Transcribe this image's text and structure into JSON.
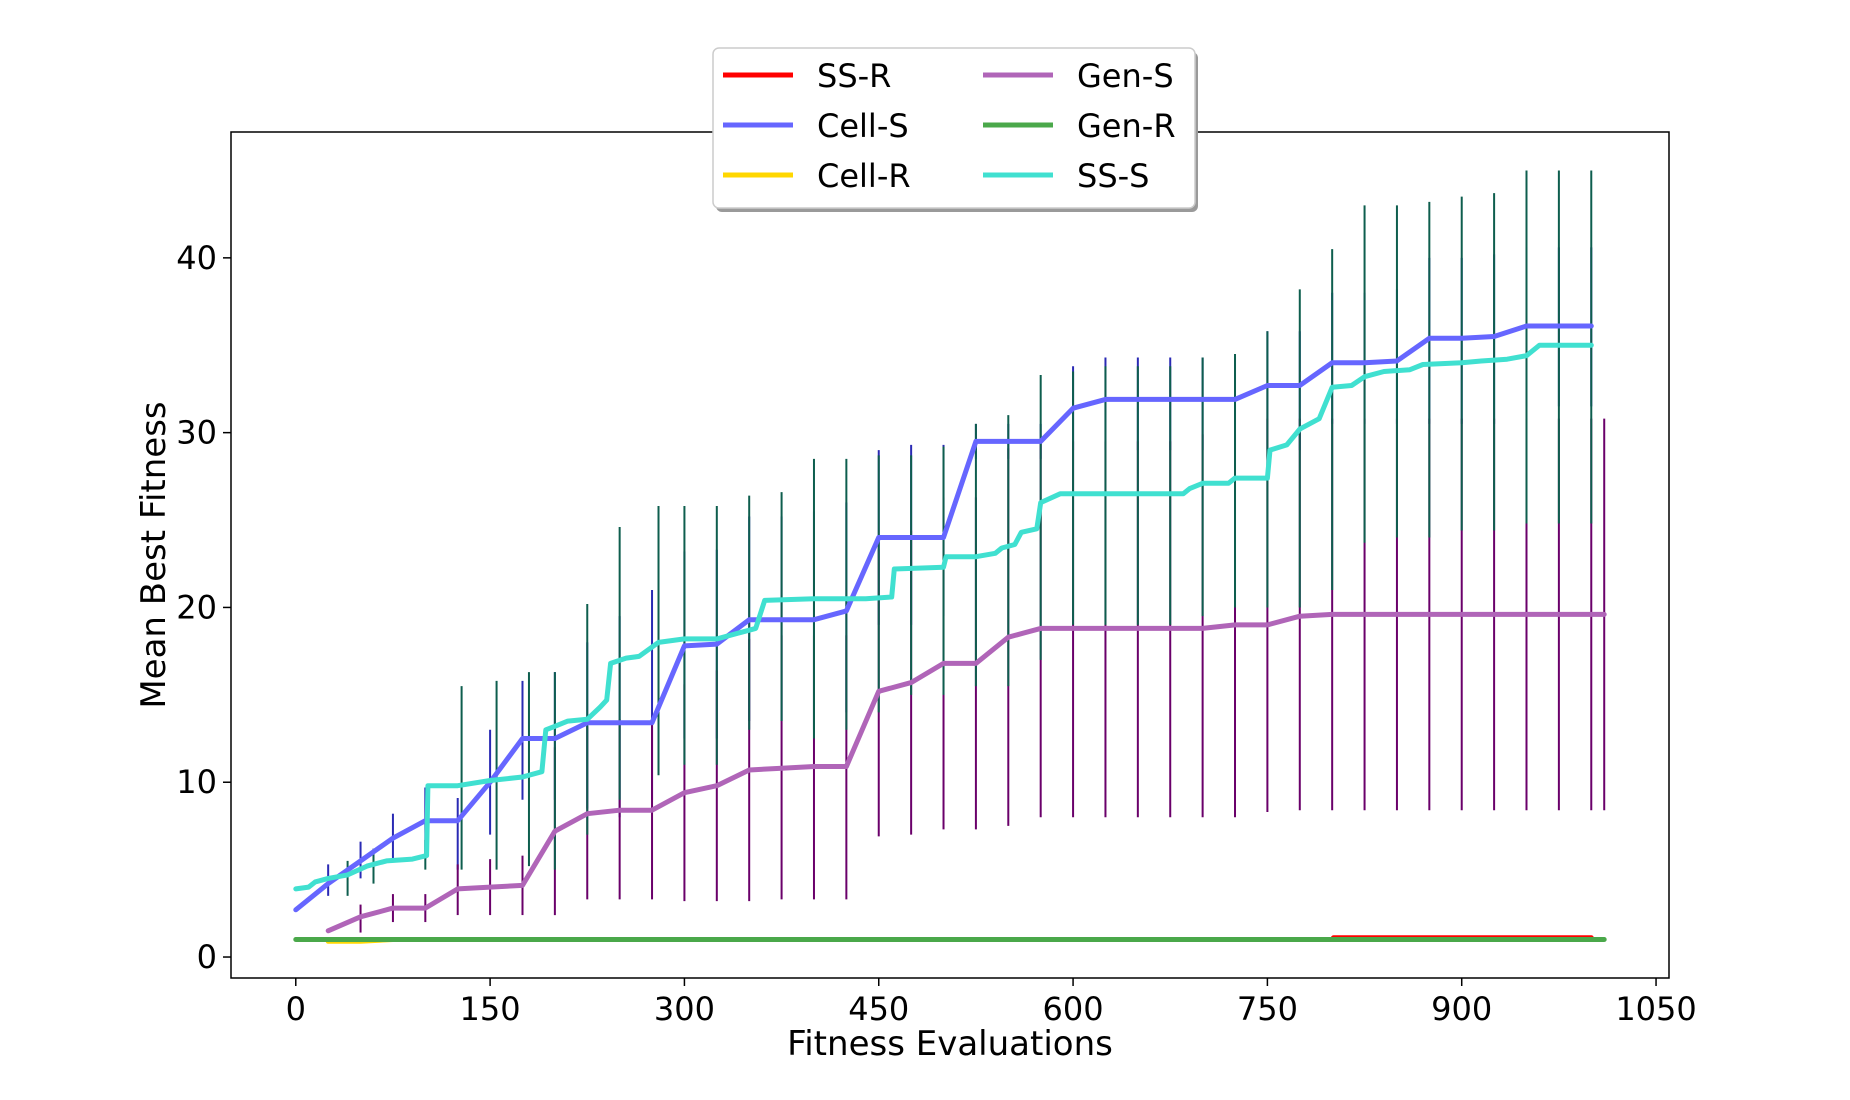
{
  "chart_data": {
    "type": "line",
    "title": "",
    "xlabel": "Fitness Evaluations",
    "ylabel": "Mean Best Fitness",
    "xlim": [
      -50,
      1060
    ],
    "ylim": [
      -1.2,
      47.2
    ],
    "x_ticks": [
      0,
      150,
      300,
      450,
      600,
      750,
      900,
      1050
    ],
    "y_ticks": [
      0,
      10,
      20,
      30,
      40
    ],
    "grid": false,
    "legend_position": "top-center",
    "series": [
      {
        "name": "SS-R",
        "color": "#ff0000",
        "points": [
          [
            25,
            1.0
          ],
          [
            800,
            1.0
          ],
          [
            801,
            1.1
          ],
          [
            1000,
            1.1
          ]
        ],
        "error_bars": []
      },
      {
        "name": "Cell-S",
        "color": "#6666ff",
        "points": [
          [
            0,
            2.7
          ],
          [
            25,
            4.2
          ],
          [
            50,
            5.5
          ],
          [
            75,
            6.8
          ],
          [
            100,
            7.8
          ],
          [
            125,
            7.8
          ],
          [
            150,
            10.0
          ],
          [
            175,
            12.5
          ],
          [
            200,
            12.5
          ],
          [
            225,
            13.4
          ],
          [
            250,
            13.4
          ],
          [
            275,
            13.4
          ],
          [
            300,
            17.8
          ],
          [
            325,
            17.9
          ],
          [
            350,
            19.3
          ],
          [
            375,
            19.3
          ],
          [
            400,
            19.3
          ],
          [
            425,
            19.8
          ],
          [
            450,
            24.0
          ],
          [
            475,
            24.0
          ],
          [
            500,
            24.0
          ],
          [
            525,
            29.5
          ],
          [
            550,
            29.5
          ],
          [
            575,
            29.5
          ],
          [
            600,
            31.4
          ],
          [
            625,
            31.9
          ],
          [
            650,
            31.9
          ],
          [
            675,
            31.9
          ],
          [
            700,
            31.9
          ],
          [
            725,
            31.9
          ],
          [
            750,
            32.7
          ],
          [
            775,
            32.7
          ],
          [
            800,
            34.0
          ],
          [
            825,
            34.0
          ],
          [
            850,
            34.1
          ],
          [
            875,
            35.4
          ],
          [
            900,
            35.4
          ],
          [
            925,
            35.5
          ],
          [
            950,
            36.1
          ],
          [
            975,
            36.1
          ],
          [
            1000,
            36.1
          ]
        ],
        "error_bars": [
          [
            25,
            3.5,
            5.3
          ],
          [
            50,
            4.5,
            6.6
          ],
          [
            75,
            5.5,
            8.2
          ],
          [
            100,
            5.6,
            9.7
          ],
          [
            125,
            5.0,
            9.1
          ],
          [
            150,
            7.0,
            13.0
          ],
          [
            175,
            9.0,
            15.8
          ],
          [
            200,
            9.0,
            16.3
          ],
          [
            225,
            8.5,
            18.0
          ],
          [
            250,
            8.0,
            19.5
          ],
          [
            275,
            9.0,
            21.0
          ],
          [
            300,
            12.5,
            23.2
          ],
          [
            325,
            12.5,
            23.3
          ],
          [
            350,
            13.5,
            25.2
          ],
          [
            375,
            13.5,
            25.2
          ],
          [
            400,
            13.0,
            25.5
          ],
          [
            425,
            14.0,
            26.0
          ],
          [
            450,
            19.0,
            29.0
          ],
          [
            475,
            19.0,
            29.3
          ],
          [
            500,
            19.5,
            29.3
          ],
          [
            525,
            28.5,
            30.5
          ],
          [
            550,
            28.5,
            30.5
          ],
          [
            575,
            28.5,
            30.5
          ],
          [
            600,
            29.0,
            33.8
          ],
          [
            625,
            29.0,
            34.3
          ],
          [
            650,
            29.0,
            34.3
          ],
          [
            675,
            29.0,
            34.3
          ],
          [
            700,
            29.0,
            34.3
          ],
          [
            725,
            29.0,
            34.3
          ],
          [
            750,
            29.0,
            35.8
          ],
          [
            775,
            29.0,
            35.8
          ],
          [
            800,
            30.5,
            38.0
          ],
          [
            825,
            30.5,
            38.0
          ],
          [
            850,
            30.5,
            38.2
          ],
          [
            875,
            30.5,
            40.0
          ],
          [
            900,
            30.5,
            40.0
          ],
          [
            925,
            30.5,
            40.2
          ],
          [
            950,
            31.5,
            40.6
          ],
          [
            975,
            31.5,
            40.6
          ],
          [
            1000,
            31.5,
            40.6
          ]
        ]
      },
      {
        "name": "Cell-R",
        "color": "#ffd700",
        "points": [
          [
            25,
            0.9
          ],
          [
            50,
            0.9
          ],
          [
            75,
            1.0
          ],
          [
            1000,
            1.0
          ]
        ],
        "error_bars": []
      },
      {
        "name": "Gen-S",
        "color": "#b065b8",
        "points": [
          [
            25,
            1.5
          ],
          [
            50,
            2.3
          ],
          [
            75,
            2.8
          ],
          [
            100,
            2.8
          ],
          [
            125,
            3.9
          ],
          [
            150,
            4.0
          ],
          [
            175,
            4.1
          ],
          [
            200,
            7.2
          ],
          [
            225,
            8.2
          ],
          [
            250,
            8.4
          ],
          [
            275,
            8.4
          ],
          [
            300,
            9.4
          ],
          [
            325,
            9.8
          ],
          [
            350,
            10.7
          ],
          [
            375,
            10.8
          ],
          [
            400,
            10.9
          ],
          [
            425,
            10.9
          ],
          [
            450,
            15.2
          ],
          [
            475,
            15.7
          ],
          [
            500,
            16.8
          ],
          [
            525,
            16.8
          ],
          [
            550,
            18.3
          ],
          [
            575,
            18.8
          ],
          [
            600,
            18.8
          ],
          [
            625,
            18.8
          ],
          [
            650,
            18.8
          ],
          [
            675,
            18.8
          ],
          [
            700,
            18.8
          ],
          [
            725,
            19.0
          ],
          [
            750,
            19.0
          ],
          [
            775,
            19.5
          ],
          [
            800,
            19.6
          ],
          [
            825,
            19.6
          ],
          [
            850,
            19.6
          ],
          [
            875,
            19.6
          ],
          [
            900,
            19.6
          ],
          [
            925,
            19.6
          ],
          [
            950,
            19.6
          ],
          [
            975,
            19.6
          ],
          [
            1000,
            19.6
          ],
          [
            1010,
            19.6
          ]
        ],
        "error_bars": [
          [
            50,
            1.4,
            3.0
          ],
          [
            75,
            2.0,
            3.6
          ],
          [
            100,
            2.0,
            3.6
          ],
          [
            125,
            2.4,
            5.3
          ],
          [
            150,
            2.4,
            5.6
          ],
          [
            175,
            2.4,
            5.8
          ],
          [
            200,
            2.4,
            12.0
          ],
          [
            225,
            3.3,
            13.2
          ],
          [
            250,
            3.3,
            13.6
          ],
          [
            275,
            3.3,
            13.6
          ],
          [
            300,
            3.2,
            15.6
          ],
          [
            325,
            3.2,
            16.4
          ],
          [
            350,
            3.2,
            18.2
          ],
          [
            375,
            3.3,
            18.4
          ],
          [
            400,
            3.3,
            18.4
          ],
          [
            425,
            3.3,
            18.4
          ],
          [
            450,
            6.9,
            23.3
          ],
          [
            475,
            7.0,
            24.4
          ],
          [
            500,
            7.3,
            26.3
          ],
          [
            525,
            7.3,
            26.3
          ],
          [
            550,
            7.5,
            29.1
          ],
          [
            575,
            8.0,
            29.5
          ],
          [
            600,
            8.0,
            29.5
          ],
          [
            625,
            8.0,
            29.5
          ],
          [
            650,
            8.0,
            29.5
          ],
          [
            675,
            8.0,
            29.5
          ],
          [
            700,
            8.0,
            29.9
          ],
          [
            725,
            8.0,
            29.9
          ],
          [
            750,
            8.3,
            30.8
          ],
          [
            775,
            8.4,
            30.8
          ],
          [
            800,
            8.4,
            30.8
          ],
          [
            825,
            8.4,
            30.8
          ],
          [
            850,
            8.4,
            30.8
          ],
          [
            875,
            8.4,
            30.8
          ],
          [
            900,
            8.4,
            30.8
          ],
          [
            925,
            8.4,
            30.8
          ],
          [
            950,
            8.4,
            30.8
          ],
          [
            975,
            8.4,
            30.8
          ],
          [
            1000,
            8.4,
            30.8
          ],
          [
            1010,
            8.4,
            30.8
          ]
        ]
      },
      {
        "name": "Gen-R",
        "color": "#4aa84a",
        "points": [
          [
            0,
            1.0
          ],
          [
            1010,
            1.0
          ]
        ],
        "error_bars": []
      },
      {
        "name": "SS-S",
        "color": "#40e0d0",
        "points": [
          [
            0,
            3.9
          ],
          [
            10,
            4.0
          ],
          [
            15,
            4.3
          ],
          [
            25,
            4.5
          ],
          [
            40,
            4.7
          ],
          [
            55,
            5.2
          ],
          [
            70,
            5.5
          ],
          [
            90,
            5.6
          ],
          [
            101,
            5.8
          ],
          [
            102,
            9.8
          ],
          [
            125,
            9.8
          ],
          [
            150,
            10.1
          ],
          [
            175,
            10.3
          ],
          [
            190,
            10.6
          ],
          [
            193,
            13.0
          ],
          [
            200,
            13.2
          ],
          [
            210,
            13.5
          ],
          [
            225,
            13.6
          ],
          [
            235,
            14.3
          ],
          [
            240,
            14.7
          ],
          [
            243,
            16.8
          ],
          [
            255,
            17.1
          ],
          [
            265,
            17.2
          ],
          [
            280,
            18.0
          ],
          [
            300,
            18.2
          ],
          [
            325,
            18.2
          ],
          [
            345,
            18.6
          ],
          [
            355,
            18.8
          ],
          [
            362,
            20.4
          ],
          [
            400,
            20.5
          ],
          [
            440,
            20.5
          ],
          [
            460,
            20.6
          ],
          [
            462,
            22.2
          ],
          [
            500,
            22.3
          ],
          [
            502,
            22.9
          ],
          [
            525,
            22.9
          ],
          [
            540,
            23.1
          ],
          [
            545,
            23.4
          ],
          [
            555,
            23.6
          ],
          [
            560,
            24.3
          ],
          [
            572,
            24.5
          ],
          [
            575,
            26.0
          ],
          [
            590,
            26.5
          ],
          [
            650,
            26.5
          ],
          [
            685,
            26.5
          ],
          [
            690,
            26.8
          ],
          [
            700,
            27.1
          ],
          [
            720,
            27.1
          ],
          [
            725,
            27.4
          ],
          [
            750,
            27.4
          ],
          [
            752,
            29.0
          ],
          [
            765,
            29.3
          ],
          [
            775,
            30.2
          ],
          [
            790,
            30.8
          ],
          [
            800,
            32.6
          ],
          [
            815,
            32.7
          ],
          [
            825,
            33.2
          ],
          [
            840,
            33.5
          ],
          [
            860,
            33.6
          ],
          [
            870,
            33.9
          ],
          [
            900,
            34.0
          ],
          [
            915,
            34.1
          ],
          [
            935,
            34.2
          ],
          [
            950,
            34.4
          ],
          [
            960,
            35.0
          ],
          [
            1000,
            35.0
          ]
        ],
        "error_bars": [
          [
            40,
            3.5,
            5.5
          ],
          [
            60,
            4.2,
            6.2
          ],
          [
            100,
            5.0,
            6.7
          ],
          [
            128,
            5.0,
            15.5
          ],
          [
            155,
            5.0,
            15.8
          ],
          [
            180,
            5.2,
            16.3
          ],
          [
            200,
            5.0,
            16.3
          ],
          [
            225,
            7.0,
            20.2
          ],
          [
            250,
            9.0,
            24.6
          ],
          [
            280,
            10.4,
            25.8
          ],
          [
            300,
            11.0,
            25.8
          ],
          [
            325,
            11.0,
            25.8
          ],
          [
            350,
            13.0,
            26.4
          ],
          [
            375,
            13.5,
            26.6
          ],
          [
            400,
            12.5,
            28.5
          ],
          [
            425,
            13.0,
            28.5
          ],
          [
            450,
            14.0,
            28.7
          ],
          [
            475,
            15.0,
            28.7
          ],
          [
            500,
            15.0,
            29.2
          ],
          [
            525,
            15.5,
            30.5
          ],
          [
            550,
            15.5,
            31.0
          ],
          [
            575,
            17.0,
            33.3
          ],
          [
            600,
            19.0,
            33.5
          ],
          [
            625,
            19.0,
            33.8
          ],
          [
            650,
            19.0,
            33.8
          ],
          [
            675,
            19.0,
            33.8
          ],
          [
            700,
            19.5,
            34.3
          ],
          [
            725,
            20.0,
            34.5
          ],
          [
            750,
            20.0,
            35.8
          ],
          [
            775,
            20.0,
            38.2
          ],
          [
            800,
            21.0,
            40.5
          ],
          [
            825,
            23.7,
            43.0
          ],
          [
            850,
            24.0,
            43.0
          ],
          [
            875,
            24.0,
            43.2
          ],
          [
            900,
            24.4,
            43.5
          ],
          [
            925,
            24.4,
            43.7
          ],
          [
            950,
            24.8,
            45.0
          ],
          [
            975,
            24.8,
            45.0
          ],
          [
            1000,
            24.8,
            45.0
          ]
        ]
      }
    ]
  }
}
